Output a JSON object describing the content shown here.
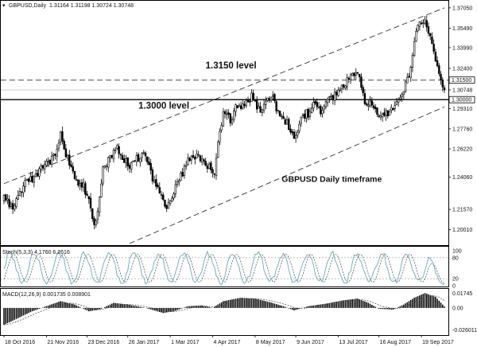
{
  "chart_data": {
    "type": "candlestick",
    "header": {
      "symbol_label": "GBPUSD,Daily",
      "ohlc_label": "1.31164 1.31198 1.30724 1.30748"
    },
    "price_axis": {
      "ylim": [
        1.1895,
        1.3753
      ],
      "ticks": [
        "1.37050",
        "1.35490",
        "1.33990",
        "1.32400",
        "1.30748",
        "1.29310",
        "1.27760",
        "1.26220",
        "1.24060",
        "1.21570",
        "1.20010"
      ],
      "tick_values": [
        1.3705,
        1.3549,
        1.3399,
        1.324,
        1.30748,
        1.2931,
        1.2776,
        1.2622,
        1.2406,
        1.2157,
        1.2001
      ],
      "markers": [
        {
          "label": "1.31500",
          "value": 1.315,
          "style": "dashed"
        },
        {
          "label": "1.30000",
          "value": 1.3,
          "style": "solid"
        }
      ],
      "current_price": 1.30748
    },
    "date_axis": {
      "labels": [
        "18 Oct 2016",
        "21 Nov 2016",
        "23 Dec 2016",
        "26 Jan 2017",
        "1 Mar 2017",
        "4 Apr 2017",
        "8 May 2017",
        "9 Jun 2017",
        "13 Jul 2017",
        "16 Aug 2017",
        "19 Sep 2017"
      ],
      "label_bars": [
        0,
        24,
        47,
        70,
        94,
        118,
        142,
        165,
        189,
        212,
        236
      ],
      "bar_count": 250
    },
    "price_path": [
      [
        0,
        1.223
      ],
      [
        6,
        1.218
      ],
      [
        12,
        1.236
      ],
      [
        18,
        1.242
      ],
      [
        24,
        1.25
      ],
      [
        28,
        1.255
      ],
      [
        32,
        1.272
      ],
      [
        36,
        1.255
      ],
      [
        40,
        1.238
      ],
      [
        44,
        1.236
      ],
      [
        48,
        1.225
      ],
      [
        51,
        1.204
      ],
      [
        53,
        1.212
      ],
      [
        56,
        1.245
      ],
      [
        60,
        1.258
      ],
      [
        64,
        1.262
      ],
      [
        68,
        1.253
      ],
      [
        72,
        1.25
      ],
      [
        76,
        1.256
      ],
      [
        80,
        1.256
      ],
      [
        84,
        1.24
      ],
      [
        88,
        1.23
      ],
      [
        92,
        1.216
      ],
      [
        96,
        1.23
      ],
      [
        100,
        1.24
      ],
      [
        104,
        1.252
      ],
      [
        108,
        1.256
      ],
      [
        112,
        1.253
      ],
      [
        116,
        1.248
      ],
      [
        119,
        1.24
      ],
      [
        121,
        1.265
      ],
      [
        124,
        1.292
      ],
      [
        128,
        1.285
      ],
      [
        132,
        1.296
      ],
      [
        136,
        1.295
      ],
      [
        140,
        1.302
      ],
      [
        144,
        1.292
      ],
      [
        148,
        1.298
      ],
      [
        152,
        1.3
      ],
      [
        156,
        1.285
      ],
      [
        160,
        1.282
      ],
      [
        164,
        1.27
      ],
      [
        168,
        1.286
      ],
      [
        172,
        1.29
      ],
      [
        176,
        1.298
      ],
      [
        180,
        1.29
      ],
      [
        184,
        1.302
      ],
      [
        188,
        1.304
      ],
      [
        192,
        1.31
      ],
      [
        196,
        1.318
      ],
      [
        200,
        1.322
      ],
      [
        204,
        1.3
      ],
      [
        208,
        1.296
      ],
      [
        212,
        1.285
      ],
      [
        216,
        1.289
      ],
      [
        220,
        1.295
      ],
      [
        224,
        1.3
      ],
      [
        228,
        1.314
      ],
      [
        231,
        1.334
      ],
      [
        234,
        1.358
      ],
      [
        237,
        1.362
      ],
      [
        240,
        1.35
      ],
      [
        243,
        1.338
      ],
      [
        246,
        1.32
      ],
      [
        249,
        1.3075
      ]
    ],
    "channel_lines": [
      {
        "name": "upper",
        "from": [
          0,
          1.2355
        ],
        "to": [
          249,
          1.3705
        ],
        "style": "dashed"
      },
      {
        "name": "lower",
        "from": [
          71,
          1.1895
        ],
        "to": [
          249,
          1.2945
        ],
        "style": "dashed"
      }
    ],
    "annotations": [
      {
        "text": "1.3150 level",
        "at": [
          114,
          1.324
        ]
      },
      {
        "text": "1.3000 level",
        "at": [
          76,
          1.293
        ]
      },
      {
        "text": "GBPUSD Daily timeframe",
        "at": [
          157,
          1.237
        ]
      }
    ],
    "stochastic": {
      "label": "Stoch(5,3,3) 4.1760 6.2616",
      "ylim": [
        0,
        100
      ],
      "levels": [
        {
          "label": "100",
          "value": 100
        },
        {
          "label": "80",
          "value": 80
        },
        {
          "label": "20",
          "value": 20
        },
        {
          "label": "0",
          "value": 0
        }
      ],
      "cycle_bars": 14,
      "last_values": [
        4.176,
        6.2616
      ]
    },
    "macd": {
      "label": "MACD(12,26,9) 0.001735 0.008901",
      "ylim": [
        -0.0311,
        0.0215
      ],
      "ticks": [
        "0.01745",
        "0.00",
        "-0.026011"
      ],
      "tick_values": [
        0.01745,
        0.0,
        -0.026011
      ],
      "last_values": [
        0.001735,
        0.008901
      ],
      "path": [
        [
          0,
          -0.02
        ],
        [
          8,
          -0.012
        ],
        [
          16,
          -0.004
        ],
        [
          24,
          0.002
        ],
        [
          32,
          0.008
        ],
        [
          40,
          0.004
        ],
        [
          48,
          -0.004
        ],
        [
          54,
          -0.002
        ],
        [
          62,
          0.006
        ],
        [
          70,
          0.004
        ],
        [
          80,
          0.0
        ],
        [
          90,
          -0.006
        ],
        [
          96,
          -0.004
        ],
        [
          104,
          0.002
        ],
        [
          112,
          0.003
        ],
        [
          118,
          0.0
        ],
        [
          124,
          0.008
        ],
        [
          134,
          0.012
        ],
        [
          142,
          0.011
        ],
        [
          150,
          0.007
        ],
        [
          158,
          0.002
        ],
        [
          164,
          -0.003
        ],
        [
          172,
          0.002
        ],
        [
          182,
          0.005
        ],
        [
          192,
          0.009
        ],
        [
          200,
          0.011
        ],
        [
          206,
          0.006
        ],
        [
          212,
          -0.001
        ],
        [
          220,
          -0.002
        ],
        [
          226,
          0.004
        ],
        [
          232,
          0.012
        ],
        [
          238,
          0.0175
        ],
        [
          244,
          0.013
        ],
        [
          249,
          0.0017
        ]
      ]
    }
  }
}
